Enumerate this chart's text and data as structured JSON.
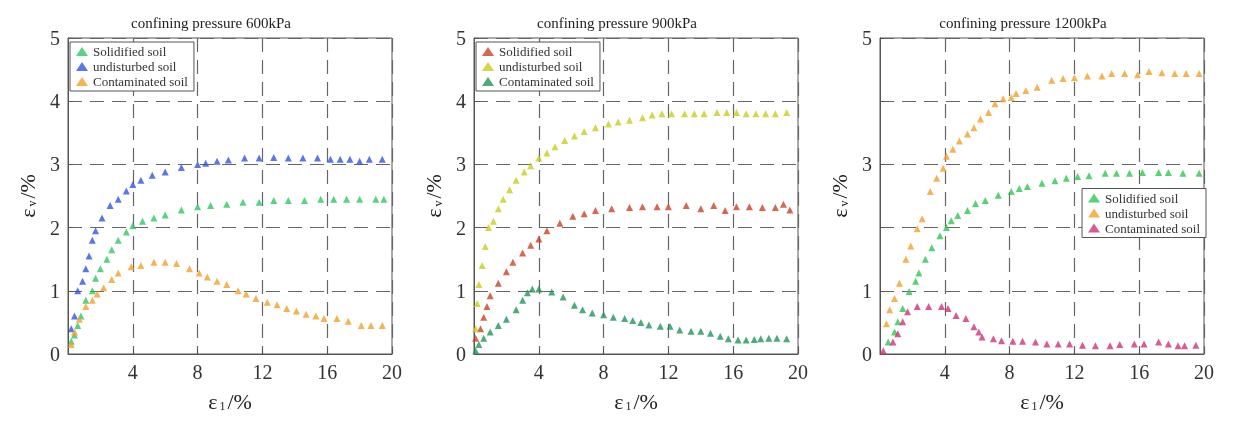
{
  "chart_data": [
    {
      "type": "scatter",
      "title": "confining pressure 600kPa",
      "xlabel": "ε$_{1}$/%",
      "ylabel": "ε$_{v}$/%",
      "xlim": [
        0,
        20
      ],
      "xticks": [
        4,
        8,
        12,
        16,
        20
      ],
      "ylim": [
        0,
        5
      ],
      "yticks": [
        0,
        1,
        2,
        3,
        4,
        5
      ],
      "grid": true,
      "legend": "top left",
      "marker": "triangle",
      "series": [
        {
          "name": "Solidified soil",
          "color": "#33c466",
          "x": [
            0.2,
            0.4,
            0.6,
            0.8,
            1.1,
            1.5,
            1.7,
            2.0,
            2.4,
            2.7,
            3.1,
            3.6,
            4.0,
            4.6,
            5.3,
            6.0,
            7.0,
            8.0,
            8.8,
            9.8,
            10.8,
            11.8,
            12.7,
            13.6,
            14.6,
            15.6,
            16.4,
            17.2,
            18.0,
            19.0,
            19.5
          ],
          "values": [
            0.2,
            0.3,
            0.45,
            0.6,
            0.85,
            1.0,
            1.2,
            1.35,
            1.5,
            1.65,
            1.8,
            1.93,
            2.03,
            2.1,
            2.15,
            2.2,
            2.28,
            2.33,
            2.35,
            2.37,
            2.4,
            2.4,
            2.43,
            2.43,
            2.43,
            2.45,
            2.45,
            2.45,
            2.45,
            2.45,
            2.45
          ]
        },
        {
          "name": "undisturbed soil",
          "color": "#3355dd",
          "x": [
            0.2,
            0.4,
            0.6,
            0.9,
            1.1,
            1.3,
            1.5,
            1.7,
            2.1,
            2.6,
            3.1,
            3.6,
            4.0,
            4.5,
            5.2,
            6.0,
            7.0,
            8.0,
            8.5,
            9.2,
            9.9,
            10.9,
            11.8,
            12.7,
            13.6,
            14.5,
            15.4,
            16.2,
            16.8,
            17.4,
            18.0,
            18.6,
            19.4
          ],
          "values": [
            0.4,
            0.6,
            1.0,
            1.15,
            1.35,
            1.55,
            1.8,
            1.95,
            2.15,
            2.35,
            2.45,
            2.58,
            2.68,
            2.75,
            2.83,
            2.88,
            2.95,
            3.0,
            3.02,
            3.05,
            3.07,
            3.1,
            3.1,
            3.11,
            3.1,
            3.1,
            3.1,
            3.08,
            3.08,
            3.08,
            3.05,
            3.08,
            3.08
          ]
        },
        {
          "name": "Contaminated soil",
          "color": "#f0a030",
          "x": [
            0.2,
            0.4,
            0.7,
            1.1,
            1.5,
            1.8,
            2.2,
            2.7,
            3.1,
            3.9,
            4.5,
            5.3,
            6.0,
            6.7,
            7.5,
            8.1,
            8.6,
            9.2,
            9.8,
            10.5,
            11.0,
            11.6,
            12.3,
            12.9,
            13.5,
            14.1,
            14.7,
            15.3,
            15.8,
            16.6,
            17.3,
            18.1,
            18.7,
            19.4
          ],
          "values": [
            0.15,
            0.35,
            0.55,
            0.75,
            0.85,
            0.95,
            1.05,
            1.18,
            1.28,
            1.38,
            1.4,
            1.45,
            1.45,
            1.43,
            1.35,
            1.28,
            1.22,
            1.15,
            1.1,
            1.0,
            0.95,
            0.88,
            0.82,
            0.78,
            0.72,
            0.68,
            0.63,
            0.6,
            0.56,
            0.56,
            0.52,
            0.45,
            0.45,
            0.45
          ]
        }
      ]
    },
    {
      "type": "scatter",
      "title": "confining pressure 900kPa",
      "xlabel": "ε$_{1}$/%",
      "ylabel": "ε$_{v}$/%",
      "xlim": [
        0,
        20
      ],
      "xticks": [
        4,
        8,
        12,
        16,
        20
      ],
      "ylim": [
        0,
        5
      ],
      "yticks": [
        0,
        1,
        2,
        3,
        4,
        5
      ],
      "grid": true,
      "legend": "top left",
      "marker": "triangle",
      "series": [
        {
          "name": "Solidified soil",
          "color": "#c8442a",
          "x": [
            0.1,
            0.4,
            0.6,
            0.8,
            1.0,
            1.5,
            2.0,
            2.4,
            3.0,
            3.5,
            4.0,
            4.5,
            5.3,
            6.1,
            6.8,
            7.5,
            8.5,
            9.6,
            10.4,
            11.3,
            12.0,
            13.1,
            14.0,
            14.8,
            15.5,
            16.2,
            17.0,
            17.8,
            18.6,
            19.1,
            19.5
          ],
          "values": [
            0.25,
            0.4,
            0.58,
            0.75,
            0.92,
            1.12,
            1.3,
            1.45,
            1.6,
            1.72,
            1.82,
            1.95,
            2.07,
            2.18,
            2.22,
            2.27,
            2.3,
            2.32,
            2.33,
            2.33,
            2.33,
            2.35,
            2.3,
            2.35,
            2.27,
            2.33,
            2.33,
            2.32,
            2.32,
            2.37,
            2.28
          ]
        },
        {
          "name": "undisturbed soil",
          "color": "#c8cc22",
          "x": [
            0.1,
            0.2,
            0.3,
            0.5,
            0.7,
            0.9,
            1.2,
            1.5,
            1.8,
            2.2,
            2.6,
            3.1,
            3.5,
            4.0,
            4.5,
            5.0,
            5.6,
            6.2,
            6.8,
            7.5,
            8.3,
            8.9,
            9.6,
            10.4,
            11.0,
            11.6,
            12.2,
            13.0,
            13.6,
            14.2,
            15.0,
            15.6,
            16.2,
            16.8,
            17.4,
            18.0,
            18.6,
            19.3
          ],
          "values": [
            0.4,
            0.8,
            1.1,
            1.4,
            1.7,
            2.0,
            2.1,
            2.3,
            2.45,
            2.6,
            2.75,
            2.88,
            2.98,
            3.1,
            3.18,
            3.28,
            3.38,
            3.45,
            3.52,
            3.58,
            3.64,
            3.67,
            3.7,
            3.74,
            3.78,
            3.8,
            3.8,
            3.8,
            3.8,
            3.8,
            3.82,
            3.82,
            3.82,
            3.8,
            3.8,
            3.8,
            3.8,
            3.82
          ]
        },
        {
          "name": "Contaminated soil",
          "color": "#22955a",
          "x": [
            0.1,
            0.3,
            0.6,
            1.0,
            1.5,
            2.0,
            2.6,
            3.0,
            3.3,
            3.6,
            4.0,
            4.8,
            5.5,
            6.2,
            6.7,
            7.3,
            8.0,
            8.6,
            9.3,
            9.8,
            10.3,
            10.8,
            11.5,
            12.1,
            12.7,
            13.4,
            14.0,
            14.6,
            15.2,
            15.7,
            16.3,
            16.8,
            17.3,
            17.7,
            18.2,
            18.7,
            19.3
          ],
          "values": [
            0.05,
            0.15,
            0.25,
            0.35,
            0.45,
            0.55,
            0.7,
            0.85,
            0.97,
            1.03,
            1.03,
            0.98,
            0.9,
            0.77,
            0.7,
            0.65,
            0.62,
            0.58,
            0.56,
            0.53,
            0.5,
            0.46,
            0.44,
            0.44,
            0.38,
            0.36,
            0.36,
            0.33,
            0.28,
            0.24,
            0.22,
            0.22,
            0.23,
            0.24,
            0.25,
            0.25,
            0.24
          ]
        }
      ]
    },
    {
      "type": "scatter",
      "title": "confining pressure 1200kPa",
      "xlabel": "ε$_{1}$/%",
      "ylabel": "ε$_{v}$/%",
      "xlim": [
        0,
        20
      ],
      "xticks": [
        4,
        8,
        12,
        16,
        20
      ],
      "ylim": [
        0,
        5
      ],
      "yticks": [
        0,
        1,
        {
          "value": 2,
          "label": null
        },
        3,
        {
          "value": 4,
          "label": null
        },
        5
      ],
      "grid": true,
      "legend": "right",
      "marker": "triangle",
      "series": [
        {
          "name": "Solidified soil",
          "color": "#33c455",
          "x": [
            0.5,
            0.9,
            1.1,
            1.4,
            1.8,
            2.2,
            2.4,
            2.8,
            3.2,
            3.7,
            4.1,
            4.4,
            4.8,
            5.4,
            5.9,
            6.5,
            7.3,
            8.1,
            8.6,
            9.1,
            10.0,
            10.8,
            11.5,
            12.2,
            12.9,
            13.9,
            14.6,
            15.4,
            16.2,
            17.2,
            17.8,
            18.7,
            19.7
          ],
          "values": [
            0.19,
            0.35,
            0.51,
            0.72,
            0.99,
            1.15,
            1.28,
            1.5,
            1.68,
            1.87,
            2.0,
            2.11,
            2.19,
            2.27,
            2.38,
            2.43,
            2.51,
            2.57,
            2.62,
            2.65,
            2.7,
            2.74,
            2.78,
            2.81,
            2.82,
            2.86,
            2.86,
            2.86,
            2.87,
            2.87,
            2.87,
            2.86,
            2.86
          ]
        },
        {
          "name": "undisturbed soil",
          "color": "#f0a030",
          "x": [
            0.4,
            0.6,
            0.9,
            1.2,
            1.6,
            1.9,
            2.3,
            2.6,
            3.1,
            3.5,
            3.9,
            4.1,
            4.5,
            4.9,
            5.4,
            5.8,
            6.2,
            6.7,
            7.1,
            7.6,
            8.1,
            8.4,
            9.0,
            9.7,
            10.6,
            11.3,
            12.0,
            12.8,
            13.7,
            14.3,
            15.1,
            15.9,
            16.6,
            17.4,
            18.2,
            18.9,
            19.7
          ],
          "values": [
            0.48,
            0.7,
            0.88,
            1.12,
            1.5,
            1.71,
            1.98,
            2.14,
            2.57,
            2.78,
            2.94,
            3.13,
            3.24,
            3.37,
            3.48,
            3.58,
            3.72,
            3.82,
            3.96,
            4.04,
            4.06,
            4.12,
            4.17,
            4.22,
            4.33,
            4.36,
            4.37,
            4.4,
            4.4,
            4.44,
            4.44,
            4.42,
            4.47,
            4.45,
            4.44,
            4.44,
            4.44
          ]
        },
        {
          "name": "Contaminated soil",
          "color": "#cc3377",
          "x": [
            0.2,
            0.8,
            1.1,
            1.4,
            1.7,
            2.3,
            3.0,
            3.8,
            4.2,
            4.7,
            5.3,
            5.8,
            6.1,
            6.3,
            7.0,
            7.5,
            8.2,
            8.8,
            9.6,
            10.3,
            11.0,
            11.7,
            12.5,
            13.3,
            14.2,
            14.8,
            15.7,
            16.3,
            17.2,
            17.8,
            18.4,
            18.8,
            19.5
          ],
          "values": [
            0.05,
            0.19,
            0.32,
            0.51,
            0.67,
            0.75,
            0.75,
            0.75,
            0.72,
            0.61,
            0.56,
            0.43,
            0.35,
            0.27,
            0.24,
            0.21,
            0.2,
            0.2,
            0.19,
            0.16,
            0.16,
            0.16,
            0.14,
            0.13,
            0.13,
            0.15,
            0.16,
            0.16,
            0.19,
            0.16,
            0.13,
            0.13,
            0.14
          ]
        }
      ]
    }
  ]
}
